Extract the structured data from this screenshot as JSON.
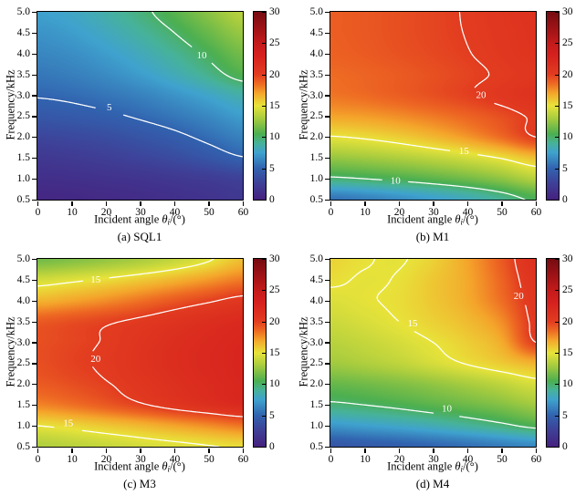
{
  "figure": {
    "ylabel": "Frequency/kHz",
    "xlabel_parts": {
      "prefix": "Incident angle ",
      "symbol": "θ",
      "sub": "i",
      "suffix": "/(°)"
    },
    "x_ticks": [
      0,
      10,
      20,
      30,
      40,
      50,
      60
    ],
    "y_ticks": [
      0.5,
      1.0,
      1.5,
      2.0,
      2.5,
      3.0,
      3.5,
      4.0,
      4.5,
      5.0
    ],
    "x_range": [
      0,
      60
    ],
    "y_range": [
      0.5,
      5.0
    ],
    "colorbar": {
      "min": 0,
      "max": 30,
      "ticks": [
        0,
        5,
        10,
        15,
        20,
        25,
        30
      ]
    },
    "contour_line_color": "#ffffff",
    "colormap": [
      {
        "v": 0,
        "color": "#45217E"
      },
      {
        "v": 2.5,
        "color": "#3F3E96"
      },
      {
        "v": 5,
        "color": "#3163AF"
      },
      {
        "v": 7.5,
        "color": "#3FA2CE"
      },
      {
        "v": 9,
        "color": "#47B29A"
      },
      {
        "v": 10.5,
        "color": "#4CAF50"
      },
      {
        "v": 13,
        "color": "#A8CC3E"
      },
      {
        "v": 15,
        "color": "#E8E33A"
      },
      {
        "v": 17,
        "color": "#F4A52B"
      },
      {
        "v": 18.5,
        "color": "#EE6A23"
      },
      {
        "v": 20,
        "color": "#E23C20"
      },
      {
        "v": 23,
        "color": "#D6211E"
      },
      {
        "v": 25,
        "color": "#C31A1B"
      },
      {
        "v": 27.5,
        "color": "#9C1216"
      },
      {
        "v": 30,
        "color": "#750C11"
      }
    ]
  },
  "chart_data": [
    {
      "type": "heatmap",
      "name": "SQL1",
      "caption": "(a) SQL1",
      "xlabel": "Incident angle θi/(°)",
      "ylabel": "Frequency/kHz",
      "x": [
        0,
        10,
        20,
        30,
        40,
        50,
        60
      ],
      "y": [
        0.5,
        1.0,
        1.5,
        2.0,
        2.5,
        3.0,
        3.5,
        4.0,
        4.5,
        5.0
      ],
      "values": [
        [
          0.5,
          0.6,
          0.8,
          1.0,
          1.3,
          1.6,
          2.0
        ],
        [
          1.2,
          1.3,
          1.5,
          1.7,
          2.0,
          2.3,
          2.7
        ],
        [
          2.0,
          2.2,
          2.5,
          2.9,
          3.4,
          4.1,
          4.9
        ],
        [
          3.0,
          3.2,
          3.5,
          4.0,
          4.6,
          5.4,
          6.2
        ],
        [
          4.2,
          4.4,
          4.7,
          5.2,
          5.8,
          6.5,
          7.3
        ],
        [
          5.1,
          5.3,
          5.7,
          6.2,
          6.9,
          7.7,
          8.6
        ],
        [
          5.8,
          6.1,
          6.6,
          7.3,
          8.2,
          9.3,
          10.6
        ],
        [
          6.4,
          6.7,
          7.3,
          8.1,
          9.1,
          10.3,
          11.6
        ],
        [
          6.9,
          7.3,
          8.0,
          8.9,
          10.0,
          11.3,
          12.6
        ],
        [
          7.4,
          7.8,
          8.6,
          9.6,
          10.8,
          12.2,
          13.5
        ]
      ],
      "contours": [
        {
          "level": 5,
          "labels": [
            [
              21,
              2.7
            ]
          ]
        },
        {
          "level": 10,
          "labels": [
            [
              48,
              3.95
            ]
          ]
        }
      ]
    },
    {
      "type": "heatmap",
      "name": "M1",
      "caption": "(b) M1",
      "xlabel": "Incident angle θi/(°)",
      "ylabel": "Frequency/kHz",
      "x": [
        0,
        10,
        20,
        30,
        40,
        50,
        60
      ],
      "y": [
        0.5,
        1.0,
        1.5,
        2.0,
        2.5,
        3.0,
        3.5,
        4.0,
        4.5,
        5.0
      ],
      "values": [
        [
          5.5,
          6.0,
          6.6,
          7.3,
          8.1,
          9.1,
          10.3
        ],
        [
          9.7,
          10.0,
          10.4,
          10.9,
          11.5,
          12.3,
          13.4
        ],
        [
          12.5,
          12.8,
          13.2,
          13.7,
          14.3,
          15.1,
          16.2
        ],
        [
          14.9,
          15.2,
          15.7,
          16.4,
          17.3,
          18.5,
          20.0
        ],
        [
          17.0,
          17.2,
          17.6,
          18.1,
          18.7,
          19.4,
          20.2
        ],
        [
          18.2,
          18.5,
          18.9,
          19.35,
          19.85,
          20.45,
          21.1
        ],
        [
          18.5,
          18.7,
          19.0,
          19.35,
          19.75,
          20.15,
          20.6
        ],
        [
          18.8,
          19.0,
          19.3,
          19.6,
          19.95,
          20.4,
          20.9
        ],
        [
          18.9,
          19.1,
          19.4,
          19.7,
          20.05,
          20.5,
          21.0
        ],
        [
          18.9,
          19.1,
          19.4,
          19.7,
          20.1,
          20.6,
          21.1
        ]
      ],
      "contours": [
        {
          "level": 10,
          "labels": [
            [
              19,
              0.95
            ]
          ]
        },
        {
          "level": 15,
          "labels": [
            [
              39,
              1.65
            ]
          ]
        },
        {
          "level": 20,
          "labels": [
            [
              44,
              3.0
            ]
          ]
        }
      ]
    },
    {
      "type": "heatmap",
      "name": "M3",
      "caption": "(c) M3",
      "xlabel": "Incident angle θi/(°)",
      "ylabel": "Frequency/kHz",
      "x": [
        0,
        10,
        20,
        30,
        40,
        50,
        60
      ],
      "y": [
        0.5,
        1.0,
        1.5,
        2.0,
        2.5,
        3.0,
        3.5,
        4.0,
        4.5,
        5.0
      ],
      "values": [
        [
          13.2,
          13.5,
          13.9,
          14.3,
          14.6,
          14.9,
          15.2
        ],
        [
          15.0,
          15.4,
          15.9,
          16.4,
          17.0,
          17.6,
          18.2
        ],
        [
          17.8,
          18.3,
          19.0,
          19.8,
          20.6,
          21.3,
          22.0
        ],
        [
          19.0,
          19.4,
          19.9,
          20.6,
          21.3,
          21.9,
          22.4
        ],
        [
          19.4,
          19.8,
          20.2,
          20.9,
          21.6,
          22.1,
          22.5
        ],
        [
          19.4,
          19.7,
          20.1,
          20.8,
          21.5,
          22.0,
          22.4
        ],
        [
          19.0,
          19.4,
          19.8,
          20.3,
          20.9,
          21.5,
          22.0
        ],
        [
          16.5,
          17.0,
          17.6,
          18.3,
          19.1,
          19.8,
          20.5
        ],
        [
          14.3,
          14.7,
          15.2,
          15.8,
          16.5,
          17.3,
          18.1
        ],
        [
          11.5,
          11.9,
          12.4,
          13.0,
          13.8,
          14.8,
          16.2
        ]
      ],
      "contours": [
        {
          "level": 15,
          "labels": [
            [
              17,
              4.5
            ],
            [
              9,
              1.05
            ]
          ]
        },
        {
          "level": 20,
          "labels": [
            [
              17,
              2.6
            ]
          ]
        }
      ]
    },
    {
      "type": "heatmap",
      "name": "M4",
      "caption": "(d) M4",
      "xlabel": "Incident angle θi/(°)",
      "ylabel": "Frequency/kHz",
      "x": [
        0,
        10,
        20,
        30,
        40,
        50,
        60
      ],
      "y": [
        0.5,
        1.0,
        1.5,
        2.0,
        2.5,
        3.0,
        3.5,
        4.0,
        4.5,
        5.0
      ],
      "values": [
        [
          4.0,
          4.3,
          4.6,
          5.0,
          5.4,
          5.9,
          6.4
        ],
        [
          7.0,
          7.4,
          7.8,
          8.3,
          8.9,
          9.6,
          10.4
        ],
        [
          9.7,
          10.0,
          10.4,
          10.9,
          11.4,
          12.0,
          12.8
        ],
        [
          11.2,
          11.5,
          11.9,
          12.4,
          13.0,
          13.7,
          14.5
        ],
        [
          12.8,
          13.2,
          13.7,
          14.4,
          15.1,
          15.8,
          16.6
        ],
        [
          13.5,
          13.9,
          14.4,
          15.0,
          15.7,
          16.8,
          20.0
        ],
        [
          14.1,
          14.5,
          15.0,
          15.6,
          16.3,
          17.6,
          20.4
        ],
        [
          14.6,
          14.9,
          15.2,
          15.9,
          16.8,
          18.4,
          20.6
        ],
        [
          15.2,
          14.9,
          15.1,
          15.9,
          16.9,
          18.7,
          21.0
        ],
        [
          15.5,
          15.1,
          14.9,
          15.6,
          17.0,
          19.0,
          21.4
        ]
      ],
      "contours": [
        {
          "level": 10,
          "labels": [
            [
              34,
              1.4
            ]
          ]
        },
        {
          "level": 15,
          "labels": [
            [
              24,
              3.45
            ]
          ]
        },
        {
          "level": 20,
          "labels": [
            [
              55,
              4.1
            ]
          ]
        }
      ]
    }
  ]
}
